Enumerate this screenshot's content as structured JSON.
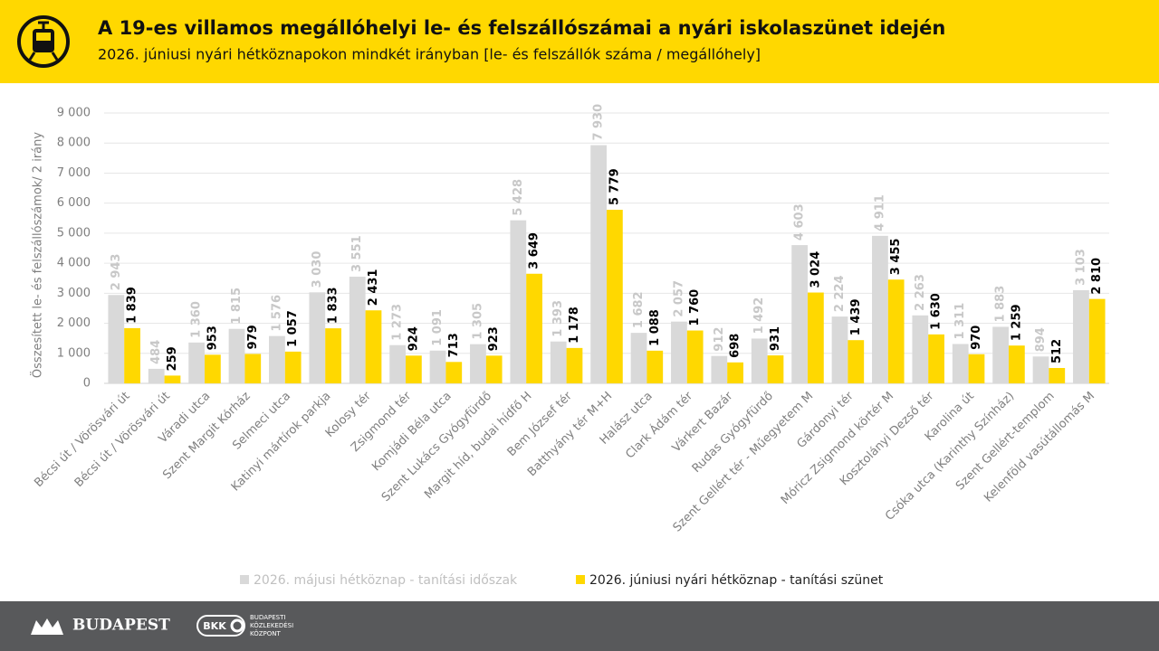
{
  "chart_data": {
    "type": "bar",
    "title": "A 19-es villamos megállóhelyi le- és felszállószámai a nyári iskolaszünet idején",
    "subtitle": "2026. júniusi nyári hétköznapokon mindkét irányban [le- és felszállók száma / megállóhely]",
    "y_label": "Összesített le- és felszállószámok/ 2 irány",
    "categories": [
      "Bécsi út / Vörösvári út",
      "Bécsi út / Vörösvári út",
      "Váradi utca",
      "Szent Margit Kórház",
      "Selmeci utca",
      "Katinyi mártírok parkja",
      "Kolosy tér",
      "Zsigmond tér",
      "Komjádi Béla utca",
      "Szent Lukács Gyógyfürdő",
      "Margit híd, budai hídfő H",
      "Bem József tér",
      "Batthyány tér M+H",
      "Halász utca",
      "Clark Ádám tér",
      "Várkert Bazár",
      "Rudas Gyógyfürdő",
      "Szent Gellért tér - Műegyetem M",
      "Gárdonyi tér",
      "Móricz Zsigmond körtér M",
      "Kosztolányi Dezső tér",
      "Karolina út",
      "Csóka utca (Karinthy Színház)",
      "Szent Gellért-templom",
      "Kelenföld vasútállomás M"
    ],
    "series": [
      {
        "name": "2026. májusi hétköznap - tanítási időszak",
        "color": "#d9d9d9",
        "values": [
          2943,
          484,
          1360,
          1815,
          1576,
          3030,
          3551,
          1273,
          1091,
          1305,
          5428,
          1393,
          7930,
          1682,
          2057,
          912,
          1492,
          4603,
          2224,
          4911,
          2263,
          1311,
          1883,
          894,
          3103
        ],
        "value_labels": [
          "2 943",
          "484",
          "1 360",
          "1 815",
          "1 576",
          "3 030",
          "3 551",
          "1 273",
          "1 091",
          "1 305",
          "5 428",
          "1 393",
          "7 930",
          "1 682",
          "2 057",
          "912",
          "1 492",
          "4 603",
          "2 224",
          "4 911",
          "2 263",
          "1 311",
          "1 883",
          "894",
          "3 103"
        ]
      },
      {
        "name": "2026. júniusi nyári hétköznap - tanítási szünet",
        "color": "#ffd800",
        "values": [
          1839,
          259,
          953,
          979,
          1057,
          1833,
          2431,
          924,
          713,
          923,
          3649,
          1178,
          5779,
          1088,
          1760,
          698,
          931,
          3024,
          1439,
          3455,
          1630,
          970,
          1259,
          512,
          2810
        ],
        "value_labels": [
          "1 839",
          "259",
          "953",
          "979",
          "1 057",
          "1 833",
          "2 431",
          "924",
          "713",
          "923",
          "3 649",
          "1 178",
          "5 779",
          "1 088",
          "1 760",
          "698",
          "931",
          "3 024",
          "1 439",
          "3 455",
          "1 630",
          "970",
          "1 259",
          "512",
          "2 810"
        ]
      }
    ],
    "ylim": [
      0,
      9000
    ],
    "yticks": [
      0,
      {
        "value": 1000,
        "label": "1 000"
      },
      {
        "value": 2000,
        "label": "2 000"
      },
      {
        "value": 3000,
        "label": "3 000"
      },
      {
        "value": 4000,
        "label": "4 000"
      },
      {
        "value": 5000,
        "label": "5 000"
      },
      {
        "value": 6000,
        "label": "6 000"
      },
      {
        "value": 7000,
        "label": "7 000"
      },
      {
        "value": 8000,
        "label": "8 000"
      },
      {
        "value": 9000,
        "label": "9 000"
      }
    ],
    "grid": true,
    "legend": "bottom"
  },
  "footer": {
    "brand": "BUDAPEST",
    "bkk": "BKK",
    "bkk_lines": [
      "BUDAPESTI",
      "KÖZLEKEDÉSI",
      "KÖZPONT"
    ]
  }
}
